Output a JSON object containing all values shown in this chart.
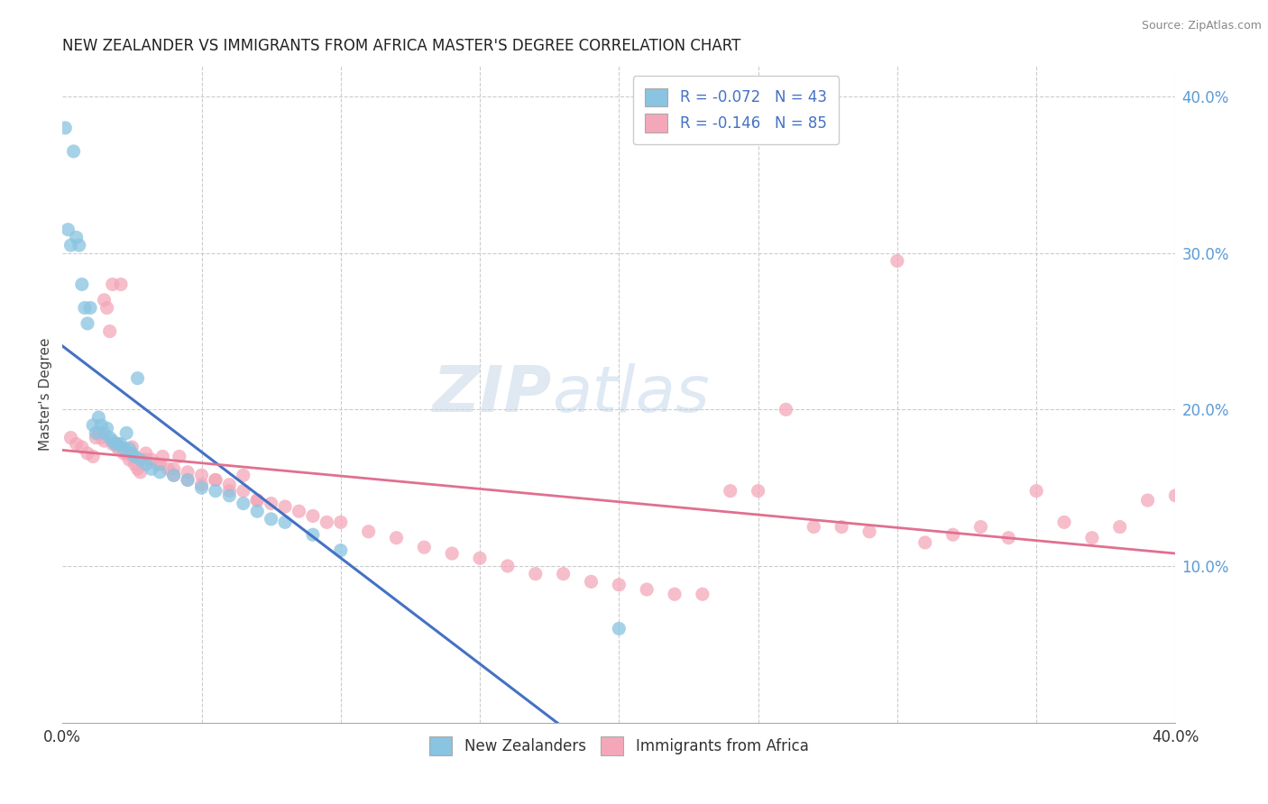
{
  "title": "NEW ZEALANDER VS IMMIGRANTS FROM AFRICA MASTER'S DEGREE CORRELATION CHART",
  "source": "Source: ZipAtlas.com",
  "ylabel": "Master's Degree",
  "color_nz": "#89c4e1",
  "color_af": "#f4a7b9",
  "color_nz_line": "#4472c4",
  "color_af_line": "#e07090",
  "color_dash": "#9dc3e6",
  "watermark_zip": "ZIP",
  "watermark_atlas": "atlas",
  "xmin": 0.0,
  "xmax": 0.4,
  "ymin": 0.0,
  "ymax": 0.42,
  "legend_r1": "R = -0.072   N = 43",
  "legend_r2": "R = -0.146   N = 85",
  "nz_x": [
    0.001,
    0.002,
    0.003,
    0.004,
    0.005,
    0.006,
    0.007,
    0.008,
    0.009,
    0.01,
    0.011,
    0.012,
    0.013,
    0.014,
    0.015,
    0.016,
    0.017,
    0.018,
    0.019,
    0.02,
    0.021,
    0.022,
    0.023,
    0.024,
    0.025,
    0.026,
    0.027,
    0.028,
    0.03,
    0.032,
    0.035,
    0.04,
    0.045,
    0.05,
    0.055,
    0.06,
    0.065,
    0.07,
    0.075,
    0.08,
    0.09,
    0.1,
    0.2
  ],
  "nz_y": [
    0.38,
    0.315,
    0.305,
    0.365,
    0.31,
    0.305,
    0.28,
    0.265,
    0.255,
    0.265,
    0.19,
    0.185,
    0.195,
    0.19,
    0.185,
    0.188,
    0.182,
    0.18,
    0.178,
    0.178,
    0.178,
    0.175,
    0.185,
    0.175,
    0.172,
    0.17,
    0.22,
    0.168,
    0.165,
    0.162,
    0.16,
    0.158,
    0.155,
    0.15,
    0.148,
    0.145,
    0.14,
    0.135,
    0.13,
    0.128,
    0.12,
    0.11,
    0.06
  ],
  "af_x": [
    0.003,
    0.005,
    0.007,
    0.009,
    0.011,
    0.013,
    0.014,
    0.015,
    0.016,
    0.017,
    0.018,
    0.019,
    0.02,
    0.021,
    0.022,
    0.023,
    0.024,
    0.025,
    0.026,
    0.027,
    0.028,
    0.03,
    0.032,
    0.034,
    0.036,
    0.038,
    0.04,
    0.042,
    0.045,
    0.05,
    0.055,
    0.06,
    0.065,
    0.07,
    0.08,
    0.09,
    0.1,
    0.12,
    0.14,
    0.16,
    0.18,
    0.2,
    0.22,
    0.24,
    0.26,
    0.28,
    0.3,
    0.32,
    0.34,
    0.36,
    0.38,
    0.4,
    0.17,
    0.19,
    0.21,
    0.23,
    0.25,
    0.27,
    0.29,
    0.31,
    0.33,
    0.35,
    0.37,
    0.39,
    0.15,
    0.13,
    0.11,
    0.095,
    0.085,
    0.075,
    0.07,
    0.065,
    0.06,
    0.055,
    0.05,
    0.045,
    0.04,
    0.035,
    0.03,
    0.025,
    0.022,
    0.02,
    0.018,
    0.015,
    0.012
  ],
  "af_y": [
    0.182,
    0.178,
    0.176,
    0.172,
    0.17,
    0.185,
    0.182,
    0.27,
    0.265,
    0.25,
    0.28,
    0.178,
    0.176,
    0.28,
    0.175,
    0.172,
    0.168,
    0.176,
    0.165,
    0.162,
    0.16,
    0.172,
    0.168,
    0.165,
    0.17,
    0.162,
    0.158,
    0.17,
    0.155,
    0.152,
    0.155,
    0.148,
    0.158,
    0.142,
    0.138,
    0.132,
    0.128,
    0.118,
    0.108,
    0.1,
    0.095,
    0.088,
    0.082,
    0.148,
    0.2,
    0.125,
    0.295,
    0.12,
    0.118,
    0.128,
    0.125,
    0.145,
    0.095,
    0.09,
    0.085,
    0.082,
    0.148,
    0.125,
    0.122,
    0.115,
    0.125,
    0.148,
    0.118,
    0.142,
    0.105,
    0.112,
    0.122,
    0.128,
    0.135,
    0.14,
    0.142,
    0.148,
    0.152,
    0.155,
    0.158,
    0.16,
    0.162,
    0.165,
    0.168,
    0.17,
    0.172,
    0.175,
    0.178,
    0.18,
    0.182
  ]
}
